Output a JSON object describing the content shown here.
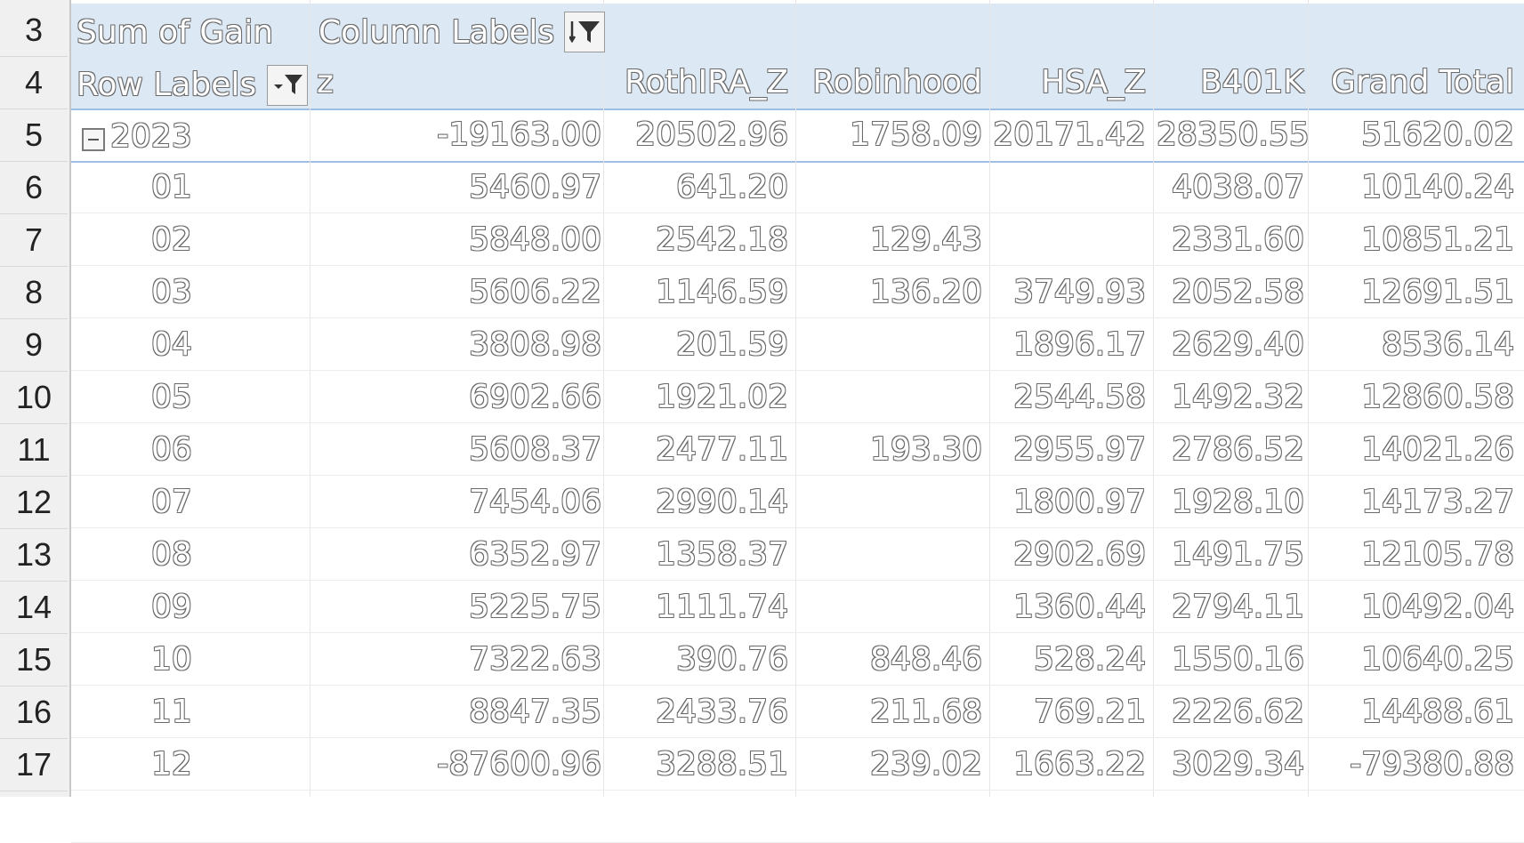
{
  "row_numbers": [
    "3",
    "4",
    "5",
    "6",
    "7",
    "8",
    "9",
    "10",
    "11",
    "12",
    "13",
    "14",
    "15",
    "16"
  ],
  "pivot": {
    "value_field": "Sum of Gain",
    "column_labels": "Column Labels",
    "row_labels": "Row Labels",
    "columns": [
      "z",
      "RothIRA_Z",
      "Robinhood",
      "HSA_Z",
      "B401K",
      "Grand Total"
    ],
    "year_row": {
      "label": "2023",
      "values": [
        "-19163.00",
        "20502.96",
        "1758.09",
        "20171.42",
        "28350.55",
        "51620.02"
      ]
    },
    "rows": [
      {
        "label": "01",
        "values": [
          "5460.97",
          "641.20",
          "",
          "",
          "4038.07",
          "10140.24"
        ]
      },
      {
        "label": "02",
        "values": [
          "5848.00",
          "2542.18",
          "129.43",
          "",
          "2331.60",
          "10851.21"
        ]
      },
      {
        "label": "03",
        "values": [
          "5606.22",
          "1146.59",
          "136.20",
          "3749.93",
          "2052.58",
          "12691.51"
        ]
      },
      {
        "label": "04",
        "values": [
          "3808.98",
          "201.59",
          "",
          "1896.17",
          "2629.40",
          "8536.14"
        ]
      },
      {
        "label": "05",
        "values": [
          "6902.66",
          "1921.02",
          "",
          "2544.58",
          "1492.32",
          "12860.58"
        ]
      },
      {
        "label": "06",
        "values": [
          "5608.37",
          "2477.11",
          "193.30",
          "2955.97",
          "2786.52",
          "14021.26"
        ]
      },
      {
        "label": "07",
        "values": [
          "7454.06",
          "2990.14",
          "",
          "1800.97",
          "1928.10",
          "14173.27"
        ]
      },
      {
        "label": "08",
        "values": [
          "6352.97",
          "1358.37",
          "",
          "2902.69",
          "1491.75",
          "12105.78"
        ]
      },
      {
        "label": "09",
        "values": [
          "5225.75",
          "1111.74",
          "",
          "1360.44",
          "2794.11",
          "10492.04"
        ]
      },
      {
        "label": "10",
        "values": [
          "7322.63",
          "390.76",
          "848.46",
          "528.24",
          "1550.16",
          "10640.25"
        ]
      },
      {
        "label": "11",
        "values": [
          "8847.35",
          "2433.76",
          "211.68",
          "769.21",
          "2226.62",
          "14488.61"
        ]
      },
      {
        "label": "12",
        "values": [
          "-87600.96",
          "3288.51",
          "239.02",
          "1663.22",
          "3029.34",
          "-79380.88"
        ]
      }
    ]
  },
  "row_numbers_extra": [
    "17"
  ]
}
